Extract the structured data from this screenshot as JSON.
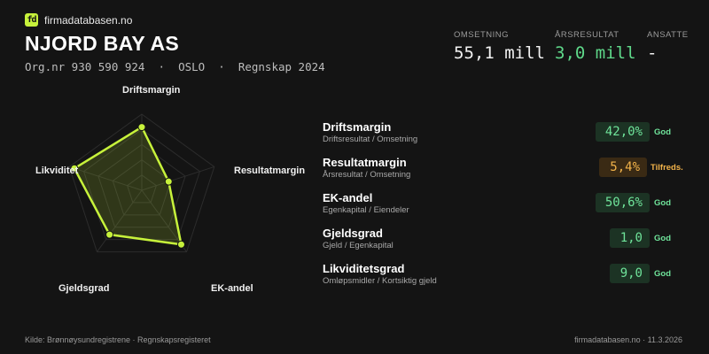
{
  "brand": {
    "logo_text": "firmadatabasen.no",
    "logo_mark": "fd",
    "accent": "#c7f23b"
  },
  "company": {
    "name": "NJORD BAY AS",
    "meta": "Org.nr 930 590 924  ·  OSLO  ·  Regnskap 2024"
  },
  "kpis": {
    "omsetning": {
      "label": "OMSETNING",
      "value": "55,1 mill"
    },
    "arsresultat": {
      "label": "ÅRSRESULTAT",
      "value": "3,0 mill"
    },
    "ansatte": {
      "label": "ANSATTE",
      "value": "-"
    }
  },
  "radar": {
    "axes": [
      {
        "label": "Driftsmargin",
        "level": 0.83
      },
      {
        "label": "Resultatmargin",
        "level": 0.37
      },
      {
        "label": "EK-andel",
        "level": 0.88
      },
      {
        "label": "Gjeldsgrad",
        "level": 0.72
      },
      {
        "label": "Likviditet",
        "level": 0.93
      }
    ],
    "rings": 5,
    "color": "#c7f23b"
  },
  "metrics": [
    {
      "name": "Driftsmargin",
      "sub": "Driftsresultat / Omsetning",
      "value": "42,0%",
      "status": "God",
      "tone": "good"
    },
    {
      "name": "Resultatmargin",
      "sub": "Årsresultat / Omsetning",
      "value": "5,4%",
      "status": "Tilfreds.",
      "tone": "ok"
    },
    {
      "name": "EK-andel",
      "sub": "Egenkapital / Eiendeler",
      "value": "50,6%",
      "status": "God",
      "tone": "good"
    },
    {
      "name": "Gjeldsgrad",
      "sub": "Gjeld / Egenkapital",
      "value": "1,0",
      "status": "God",
      "tone": "good"
    },
    {
      "name": "Likviditetsgrad",
      "sub": "Omløpsmidler / Kortsiktig gjeld",
      "value": "9,0",
      "status": "God",
      "tone": "good"
    }
  ],
  "footer": {
    "source": "Kilde: Brønnøysundregistrene · Regnskapsregisteret",
    "site": "firmadatabasen.no · 11.3.2026"
  }
}
